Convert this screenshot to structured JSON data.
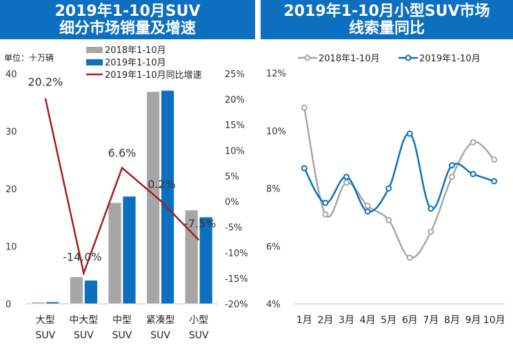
{
  "chart_data": [
    {
      "type": "bar",
      "title_lines": [
        "2019年1-10月SUV",
        "细分市场销量及增速"
      ],
      "unit_label": "单位：十万辆",
      "categories": [
        [
          "大型",
          "SUV"
        ],
        [
          "中大型",
          "SUV"
        ],
        [
          "中型",
          "SUV"
        ],
        [
          "紧凑型",
          "SUV"
        ],
        [
          "小型",
          "SUV"
        ]
      ],
      "series": [
        {
          "name": "2018年1-10月",
          "values": [
            0.3,
            4.7,
            17.6,
            36.9,
            16.3
          ]
        },
        {
          "name": "2019年1-10月",
          "values": [
            0.35,
            4.1,
            18.7,
            37.1,
            15.1
          ]
        }
      ],
      "line_series": {
        "name": "2019年1-10月同比增速",
        "values": [
          20.2,
          -14.0,
          6.6,
          0.2,
          -7.5
        ],
        "labels": [
          "20.2%",
          "-14.0%",
          "6.6%",
          "0.2%",
          "-7.5%"
        ]
      },
      "ylim": [
        0,
        40
      ],
      "y_ticks": [
        "0",
        "10",
        "20",
        "30",
        "40"
      ],
      "y2lim": [
        -20,
        25
      ],
      "y2_ticks": [
        "-20%",
        "-15%",
        "-10%",
        "-5%",
        "0%",
        "5%",
        "10%",
        "15%",
        "20%",
        "25%"
      ],
      "colors": {
        "series2018": "#a6a6a6",
        "series2019": "#0c6fbf",
        "growth": "#a61d1d"
      }
    },
    {
      "type": "line",
      "title_lines": [
        "2019年1-10月小型SUV市场",
        "线索量同比"
      ],
      "categories": [
        "1月",
        "2月",
        "3月",
        "4月",
        "5月",
        "6月",
        "7月",
        "8月",
        "9月",
        "10月"
      ],
      "series": [
        {
          "name": "2018年1-10月",
          "values": [
            10.8,
            7.1,
            8.2,
            7.4,
            6.9,
            5.6,
            6.5,
            8.4,
            9.6,
            9.0
          ]
        },
        {
          "name": "2019年1-10月",
          "values": [
            8.7,
            7.5,
            8.4,
            7.2,
            8.0,
            9.9,
            7.3,
            8.8,
            8.5,
            8.25
          ]
        }
      ],
      "ylim": [
        4,
        12
      ],
      "y_ticks": [
        "4%",
        "6%",
        "8%",
        "10%",
        "12%"
      ],
      "legend_position": "top",
      "colors": {
        "series2018": "#a6a6a6",
        "series2019": "#0c6fbf"
      }
    }
  ]
}
